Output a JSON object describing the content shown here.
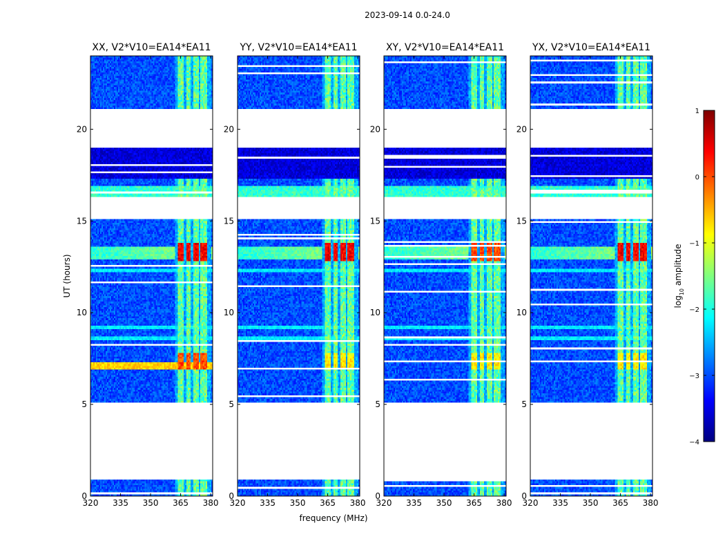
{
  "chart_data": {
    "type": "heatmap",
    "suptitle": "2023-09-14 0.0-24.0",
    "xlabel": "frequency (MHz)",
    "ylabel": "UT (hours)",
    "xlim": [
      320,
      381
    ],
    "ylim": [
      0,
      24
    ],
    "xticks": [
      320,
      335,
      350,
      365,
      380
    ],
    "yticks": [
      0,
      5,
      10,
      15,
      20
    ],
    "panels": [
      {
        "title": "XX, V2*V10=EA14*EA11"
      },
      {
        "title": "YY, V2*V10=EA14*EA11"
      },
      {
        "title": "XY, V2*V10=EA14*EA11"
      },
      {
        "title": "YX, V2*V10=EA14*EA11"
      }
    ],
    "colorbar": {
      "label": "log10 amplitude",
      "label_base": "log",
      "label_sub": "10",
      "label_rest": " amplitude",
      "colormap": "jet",
      "range": [
        -4,
        1
      ],
      "ticks": [
        1,
        0,
        -1,
        -2,
        -3,
        -4
      ],
      "tick_labels": [
        "1",
        "0",
        "−1",
        "−2",
        "−3",
        "−4"
      ]
    },
    "data_segments_hours": [
      [
        0.0,
        0.9
      ],
      [
        5.1,
        6.0
      ],
      [
        6.0,
        8.4
      ],
      [
        8.4,
        9.3
      ],
      [
        9.3,
        12.6
      ],
      [
        12.6,
        15.1
      ],
      [
        16.3,
        17.3
      ],
      [
        17.3,
        19.0
      ],
      [
        21.1,
        24.0
      ]
    ],
    "rfi_band_mhz": [
      362,
      380
    ],
    "strong_rfi_hours": [
      [
        12.8,
        13.8
      ],
      [
        6.9,
        7.8
      ]
    ]
  }
}
